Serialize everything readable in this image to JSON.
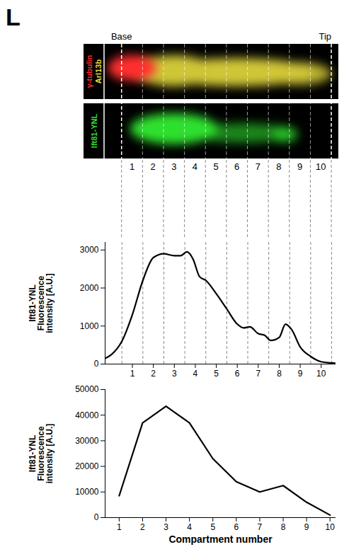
{
  "panel_label": "L",
  "image_panel": {
    "base_label": "Base",
    "tip_label": "Tip",
    "top_image": {
      "channels": [
        {
          "name": "γ-tubulin",
          "color": "#ff2e2e"
        },
        {
          "name": "Arl13b",
          "color": "#e6dc3c"
        }
      ]
    },
    "bottom_image": {
      "channels": [
        {
          "name": "Ift81-YNL",
          "color": "#2ee02e"
        }
      ]
    },
    "compartment_labels": [
      1,
      2,
      3,
      4,
      5,
      6,
      7,
      8,
      9,
      10
    ]
  },
  "chart_data": [
    {
      "type": "line",
      "ylabel": "Ift81-YNL Fluorescence intensity [A.U.]",
      "x": [
        -0.3,
        0,
        0.5,
        1.0,
        1.5,
        2.0,
        2.5,
        3.0,
        3.3,
        3.6,
        3.9,
        4.2,
        4.5,
        5.0,
        5.5,
        6.0,
        6.3,
        6.6,
        7.0,
        7.3,
        7.6,
        8.0,
        8.3,
        8.6,
        9.0,
        9.5,
        10.0,
        10.5,
        10.7
      ],
      "values": [
        150,
        250,
        600,
        1300,
        2200,
        2800,
        2900,
        2850,
        2850,
        2950,
        2750,
        2300,
        2200,
        1850,
        1450,
        1050,
        950,
        980,
        800,
        760,
        620,
        700,
        1050,
        900,
        450,
        200,
        60,
        30,
        20
      ],
      "color": "#000000",
      "xlim": [
        -0.3,
        10.7
      ],
      "ylim": [
        0,
        3200
      ],
      "xticks": [
        1,
        2,
        3,
        4,
        5,
        6,
        7,
        8,
        9,
        10
      ],
      "yticks": [
        0,
        1000,
        2000,
        3000
      ],
      "boundaries": [
        0.5,
        1.5,
        2.5,
        3.5,
        4.5,
        5.5,
        6.5,
        7.5,
        8.5,
        9.5,
        10.5
      ]
    },
    {
      "type": "line",
      "xlabel": "Compartment number",
      "ylabel": "Ift81-YNL Fluorescence intensity [A.U.]",
      "x": [
        1,
        2,
        3,
        4,
        5,
        6,
        7,
        8,
        9,
        10
      ],
      "values": [
        8500,
        37000,
        43500,
        37000,
        23000,
        14000,
        10000,
        12500,
        6000,
        1000
      ],
      "color": "#000000",
      "xlim": [
        0.4,
        10.25
      ],
      "ylim": [
        0,
        50000
      ],
      "xticks": [
        1,
        2,
        3,
        4,
        5,
        6,
        7,
        8,
        9,
        10
      ],
      "yticks": [
        0,
        10000,
        20000,
        30000,
        40000,
        50000
      ]
    }
  ]
}
